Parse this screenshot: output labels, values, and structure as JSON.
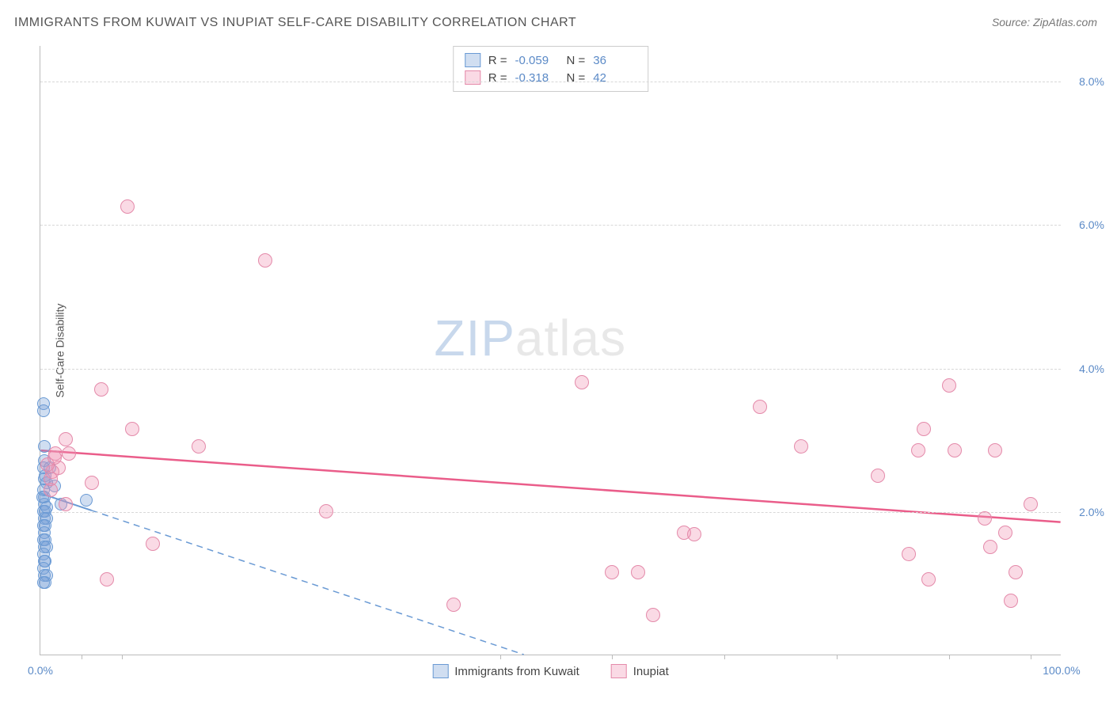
{
  "title": "IMMIGRANTS FROM KUWAIT VS INUPIAT SELF-CARE DISABILITY CORRELATION CHART",
  "source": "Source: ZipAtlas.com",
  "watermark_zip": "ZIP",
  "watermark_atlas": "atlas",
  "y_axis_title": "Self-Care Disability",
  "chart": {
    "type": "scatter",
    "xlim": [
      0,
      100
    ],
    "ylim": [
      0,
      8.5
    ],
    "y_ticks": [
      2.0,
      4.0,
      6.0,
      8.0
    ],
    "y_tick_labels": [
      "2.0%",
      "4.0%",
      "6.0%",
      "8.0%"
    ],
    "x_start_label": "0.0%",
    "x_end_label": "100.0%",
    "x_tick_positions": [
      4,
      8,
      45,
      56,
      67,
      78,
      89,
      97
    ],
    "background_color": "#ffffff",
    "grid_color": "#d8d8d8",
    "axis_color": "#bbbbbb",
    "series": [
      {
        "name": "Immigrants from Kuwait",
        "fill_color": "rgba(120,160,215,0.35)",
        "stroke_color": "#6a9ad4",
        "marker_radius": 8,
        "regression": {
          "y_at_x0": 2.25,
          "y_at_x100": -2.5,
          "dashed_continuation": true,
          "color": "#6a9ad4",
          "width": 2
        },
        "points": [
          [
            0.3,
            3.5
          ],
          [
            0.3,
            3.4
          ],
          [
            0.4,
            2.9
          ],
          [
            0.4,
            2.7
          ],
          [
            0.3,
            2.6
          ],
          [
            0.5,
            2.5
          ],
          [
            0.6,
            2.4
          ],
          [
            0.3,
            2.3
          ],
          [
            0.4,
            2.2
          ],
          [
            0.4,
            2.1
          ],
          [
            0.3,
            2.0
          ],
          [
            0.5,
            2.0
          ],
          [
            0.4,
            1.9
          ],
          [
            0.6,
            1.9
          ],
          [
            0.3,
            1.8
          ],
          [
            0.5,
            1.8
          ],
          [
            0.2,
            2.2
          ],
          [
            0.4,
            1.7
          ],
          [
            0.3,
            1.6
          ],
          [
            0.5,
            1.6
          ],
          [
            0.4,
            1.5
          ],
          [
            0.6,
            1.5
          ],
          [
            0.3,
            1.4
          ],
          [
            0.5,
            1.3
          ],
          [
            0.4,
            1.3
          ],
          [
            0.3,
            1.2
          ],
          [
            0.4,
            1.1
          ],
          [
            0.6,
            1.1
          ],
          [
            0.5,
            1.0
          ],
          [
            0.3,
            1.0
          ],
          [
            4.5,
            2.15
          ],
          [
            0.4,
            2.45
          ],
          [
            0.6,
            2.05
          ],
          [
            0.9,
            2.6
          ],
          [
            1.4,
            2.35
          ],
          [
            2.0,
            2.1
          ]
        ]
      },
      {
        "name": "Inupiat",
        "fill_color": "rgba(240,150,180,0.35)",
        "stroke_color": "#e48aaa",
        "marker_radius": 9,
        "regression": {
          "y_at_x0": 2.85,
          "y_at_x100": 1.85,
          "dashed_continuation": false,
          "color": "#ea5d8a",
          "width": 2.5
        },
        "points": [
          [
            8.5,
            6.25
          ],
          [
            22.0,
            5.5
          ],
          [
            6.0,
            3.7
          ],
          [
            2.5,
            3.0
          ],
          [
            1.5,
            2.8
          ],
          [
            9.0,
            3.15
          ],
          [
            15.5,
            2.9
          ],
          [
            1.8,
            2.6
          ],
          [
            5.0,
            2.4
          ],
          [
            1.2,
            2.55
          ],
          [
            1.0,
            2.3
          ],
          [
            0.7,
            2.65
          ],
          [
            1.4,
            2.75
          ],
          [
            2.5,
            2.1
          ],
          [
            11.0,
            1.55
          ],
          [
            6.5,
            1.05
          ],
          [
            28.0,
            2.0
          ],
          [
            40.5,
            0.7
          ],
          [
            53.0,
            3.8
          ],
          [
            56.0,
            1.15
          ],
          [
            58.5,
            1.15
          ],
          [
            60.0,
            0.55
          ],
          [
            63.0,
            1.7
          ],
          [
            64.0,
            1.68
          ],
          [
            70.5,
            3.45
          ],
          [
            74.5,
            2.9
          ],
          [
            82.0,
            2.5
          ],
          [
            85.0,
            1.4
          ],
          [
            86.0,
            2.85
          ],
          [
            86.5,
            3.15
          ],
          [
            87.0,
            1.05
          ],
          [
            89.5,
            2.85
          ],
          [
            89.0,
            3.75
          ],
          [
            92.5,
            1.9
          ],
          [
            93.0,
            1.5
          ],
          [
            94.5,
            1.7
          ],
          [
            95.5,
            1.15
          ],
          [
            95.0,
            0.75
          ],
          [
            97.0,
            2.1
          ],
          [
            93.5,
            2.85
          ],
          [
            1.0,
            2.45
          ],
          [
            2.8,
            2.8
          ]
        ]
      }
    ]
  },
  "legend_stats": {
    "rows": [
      {
        "swatch_fill": "rgba(120,160,215,0.35)",
        "swatch_stroke": "#6a9ad4",
        "r_label": "R =",
        "r_value": "-0.059",
        "n_label": "N =",
        "n_value": "36"
      },
      {
        "swatch_fill": "rgba(240,150,180,0.35)",
        "swatch_stroke": "#e48aaa",
        "r_label": "R =",
        "r_value": "-0.318",
        "n_label": "N =",
        "n_value": "42"
      }
    ]
  },
  "bottom_legend": {
    "items": [
      {
        "swatch_fill": "rgba(120,160,215,0.35)",
        "swatch_stroke": "#6a9ad4",
        "label": "Immigrants from Kuwait"
      },
      {
        "swatch_fill": "rgba(240,150,180,0.35)",
        "swatch_stroke": "#e48aaa",
        "label": "Inupiat"
      }
    ]
  }
}
